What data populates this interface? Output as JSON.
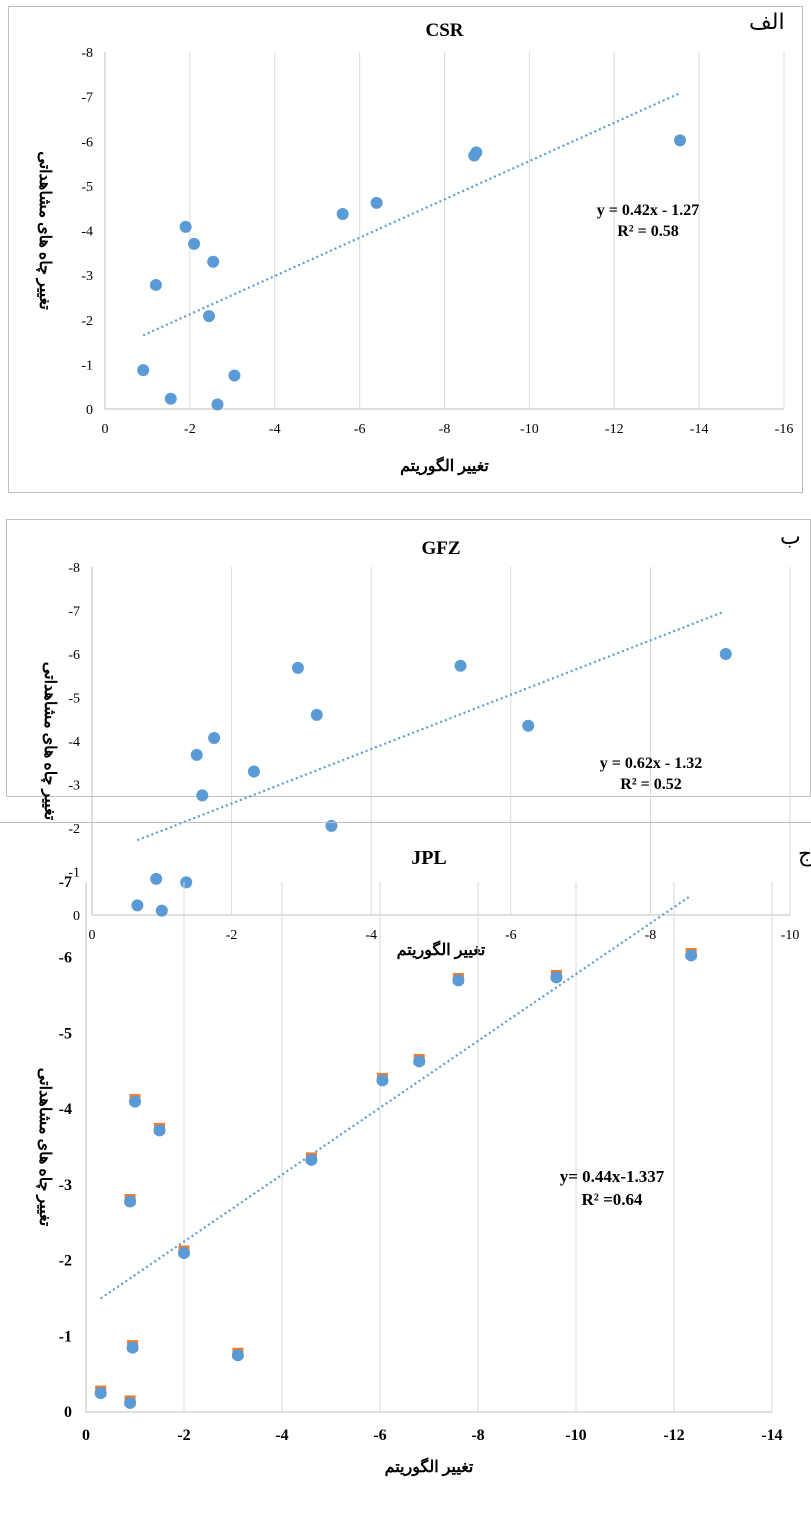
{
  "chart_data": [
    {
      "type": "scatter",
      "panel_label": "الف",
      "title": "CSR",
      "xlabel": "تغییر الگوریتم",
      "ylabel": "تغییر چاه های مشاهداتی",
      "xlim": [
        0,
        -16
      ],
      "ylim": [
        0,
        -8
      ],
      "xticks": [
        0,
        -2,
        -4,
        -6,
        -8,
        -10,
        -12,
        -14,
        -16
      ],
      "yticks": [
        0,
        -1,
        -2,
        -3,
        -4,
        -5,
        -6,
        -7,
        -8
      ],
      "xtick_labels": [
        "0",
        "-2",
        "-4",
        "-6",
        "-8",
        "-10",
        "-12",
        "-14",
        "-16"
      ],
      "ytick_labels": [
        "0",
        "-1",
        "-2",
        "-3",
        "-4",
        "-5",
        "-6",
        "-7",
        "-8"
      ],
      "grid": "vertical",
      "x": [
        -0.9,
        -1.55,
        -1.2,
        -1.9,
        -2.1,
        -2.45,
        -2.55,
        -2.65,
        -3.05,
        -5.6,
        -6.4,
        -8.7,
        -8.75,
        -13.55
      ],
      "y": [
        -0.87,
        -0.23,
        -2.78,
        -4.08,
        -3.7,
        -2.08,
        -3.3,
        -0.1,
        -0.75,
        -4.37,
        -4.62,
        -5.68,
        -5.75,
        -6.02
      ],
      "trendline": {
        "x": [
          -0.9,
          -13.55
        ],
        "y": [
          -1.65,
          -7.08
        ]
      },
      "equation": "y = 0.42x - 1.27",
      "r2": "R² = 0.58",
      "colors": {
        "point": "#5b9bd5",
        "trend": "#5b9bd5",
        "grid": "#d9d9d9",
        "frame": "#bfbfbf"
      }
    },
    {
      "type": "scatter",
      "panel_label": "ب",
      "title": "GFZ",
      "xlabel": "تغییر الگوریتم",
      "ylabel": "تغییر چاه های مشاهداتی",
      "xlim": [
        0,
        -10
      ],
      "ylim": [
        0,
        -8
      ],
      "xticks": [
        0,
        -2,
        -4,
        -6,
        -8,
        -10
      ],
      "yticks": [
        0,
        -1,
        -2,
        -3,
        -4,
        -5,
        -6,
        -7,
        -8
      ],
      "xtick_labels": [
        "0",
        "-2",
        "-4",
        "-6",
        "-8",
        "-10"
      ],
      "ytick_labels": [
        "0",
        "-1",
        "-2",
        "-3",
        "-4",
        "-5",
        "-6",
        "-7",
        "-8"
      ],
      "grid": "vertical",
      "x": [
        -0.65,
        -0.92,
        -1.0,
        -1.35,
        -1.5,
        -1.58,
        -1.75,
        -2.32,
        -2.95,
        -3.22,
        -3.43,
        -5.28,
        -6.25,
        -9.08
      ],
      "y": [
        -0.22,
        -0.83,
        -0.1,
        -0.75,
        -3.68,
        -2.75,
        -4.07,
        -3.3,
        -5.68,
        -4.6,
        -2.05,
        -5.73,
        -4.35,
        -6.0
      ],
      "trendline": {
        "x": [
          -0.65,
          -9.05
        ],
        "y": [
          -1.72,
          -6.97
        ]
      },
      "equation": "y = 0.62x - 1.32",
      "r2": "R² = 0.52",
      "colors": {
        "point": "#5b9bd5",
        "trend": "#5b9bd5",
        "grid": "#d9d9d9",
        "frame": "#bfbfbf"
      }
    },
    {
      "type": "scatter",
      "panel_label": "ج",
      "title": "JPL",
      "xlabel": "تغییر الگوریتم",
      "ylabel": "تغییر چاه های مشاهداتی",
      "xlim": [
        0,
        -14
      ],
      "ylim": [
        0,
        -7
      ],
      "xticks": [
        0,
        -2,
        -4,
        -6,
        -8,
        -10,
        -12,
        -14
      ],
      "yticks": [
        0,
        -1,
        -2,
        -3,
        -4,
        -5,
        -6,
        -7
      ],
      "xtick_labels": [
        "0",
        "-2",
        "-4",
        "-6",
        "-8",
        "-10",
        "-12",
        "-14"
      ],
      "ytick_labels": [
        "0",
        "-1",
        "-2",
        "-3",
        "-4",
        "-5",
        "-6",
        "-7"
      ],
      "grid": "vertical",
      "x": [
        -0.3,
        -0.9,
        -0.9,
        -0.95,
        -1.0,
        -1.5,
        -2.0,
        -3.1,
        -4.6,
        -6.05,
        -6.8,
        -7.6,
        -9.6,
        -12.35
      ],
      "y": [
        -0.25,
        -0.12,
        -2.78,
        -0.85,
        -4.1,
        -3.72,
        -2.1,
        -0.75,
        -3.33,
        -4.38,
        -4.63,
        -5.7,
        -5.74,
        -6.03
      ],
      "trendline": {
        "x": [
          -0.3,
          -12.3
        ],
        "y": [
          -1.5,
          -6.8
        ]
      },
      "equation": "y= 0.44x-1.337",
      "r2": "R² =0.64",
      "colors": {
        "point": "#5b9bd5",
        "point_under": "#ed7d31",
        "trend": "#5b9bd5",
        "grid": "#d9d9d9",
        "frame": "#bfbfbf"
      }
    }
  ]
}
